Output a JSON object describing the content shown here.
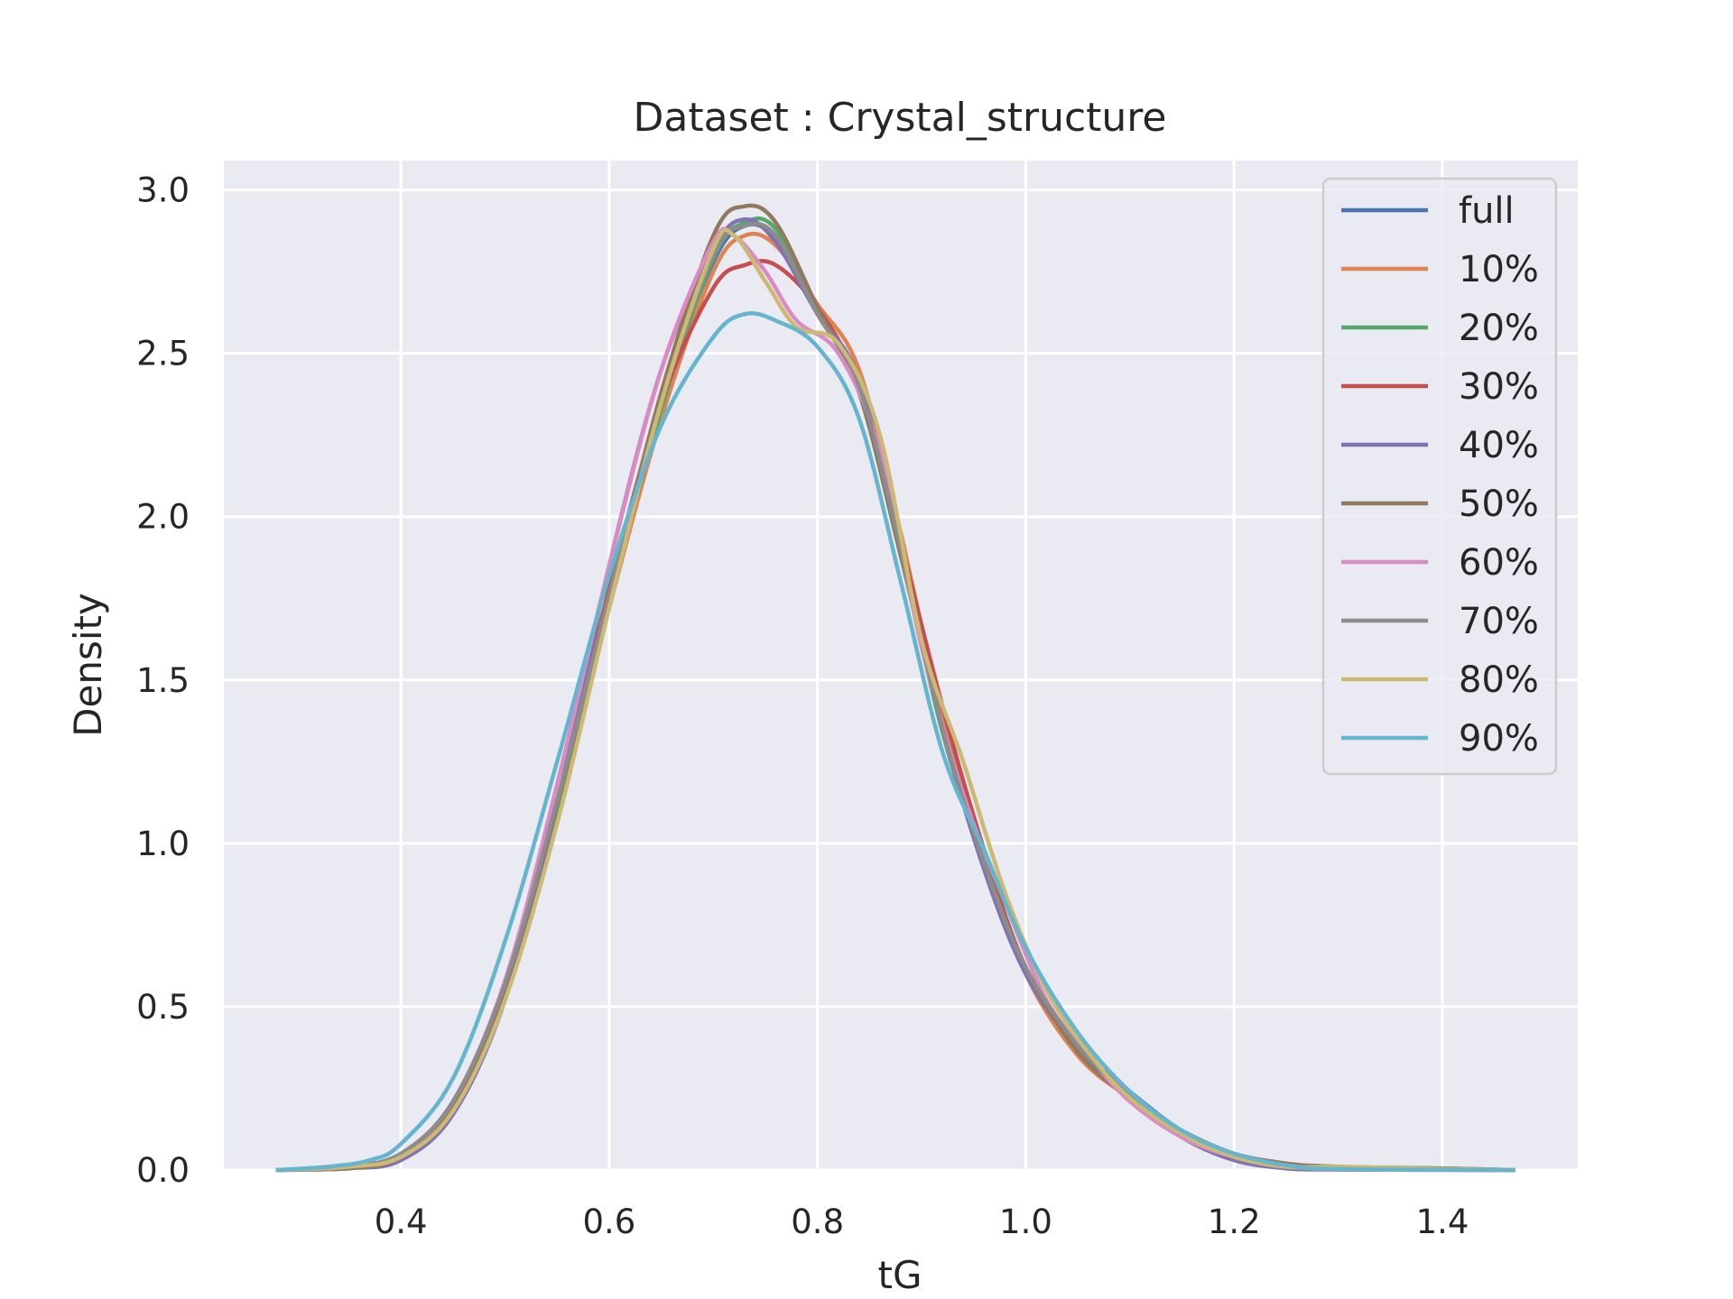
{
  "chart_data": {
    "type": "line",
    "title": "Dataset : Crystal_structure",
    "xlabel": "tG",
    "ylabel": "Density",
    "xlim": [
      0.23,
      1.53
    ],
    "ylim": [
      0.0,
      3.09
    ],
    "xticks": [
      0.4,
      0.6,
      0.8,
      1.0,
      1.2,
      1.4
    ],
    "xtick_labels": [
      "0.4",
      "0.6",
      "0.8",
      "1.0",
      "1.2",
      "1.4"
    ],
    "yticks": [
      0.0,
      0.5,
      1.0,
      1.5,
      2.0,
      2.5,
      3.0
    ],
    "ytick_labels": [
      "0.0",
      "0.5",
      "1.0",
      "1.5",
      "2.0",
      "2.5",
      "3.0"
    ],
    "grid": true,
    "background": "#eaeaf2",
    "legend_position": "top-right",
    "series": [
      {
        "name": "full",
        "color": "#4c72b0",
        "points": [
          [
            0.28,
            0
          ],
          [
            0.35,
            0.01
          ],
          [
            0.4,
            0.05
          ],
          [
            0.45,
            0.2
          ],
          [
            0.5,
            0.55
          ],
          [
            0.55,
            1.1
          ],
          [
            0.6,
            1.75
          ],
          [
            0.65,
            2.35
          ],
          [
            0.7,
            2.78
          ],
          [
            0.73,
            2.89
          ],
          [
            0.76,
            2.85
          ],
          [
            0.8,
            2.62
          ],
          [
            0.84,
            2.4
          ],
          [
            0.88,
            1.9
          ],
          [
            0.92,
            1.35
          ],
          [
            0.96,
            0.95
          ],
          [
            1.0,
            0.62
          ],
          [
            1.05,
            0.38
          ],
          [
            1.1,
            0.24
          ],
          [
            1.15,
            0.12
          ],
          [
            1.2,
            0.05
          ],
          [
            1.25,
            0.02
          ],
          [
            1.3,
            0.005
          ],
          [
            1.4,
            0.002
          ],
          [
            1.47,
            0
          ]
        ]
      },
      {
        "name": "10%",
        "color": "#dd8452",
        "points": [
          [
            0.28,
            0
          ],
          [
            0.35,
            0.01
          ],
          [
            0.4,
            0.04
          ],
          [
            0.45,
            0.19
          ],
          [
            0.5,
            0.54
          ],
          [
            0.55,
            1.08
          ],
          [
            0.6,
            1.72
          ],
          [
            0.65,
            2.3
          ],
          [
            0.7,
            2.75
          ],
          [
            0.73,
            2.86
          ],
          [
            0.76,
            2.83
          ],
          [
            0.8,
            2.65
          ],
          [
            0.84,
            2.45
          ],
          [
            0.88,
            1.95
          ],
          [
            0.92,
            1.38
          ],
          [
            0.96,
            0.96
          ],
          [
            1.0,
            0.6
          ],
          [
            1.05,
            0.35
          ],
          [
            1.1,
            0.22
          ],
          [
            1.15,
            0.12
          ],
          [
            1.2,
            0.05
          ],
          [
            1.25,
            0.02
          ],
          [
            1.3,
            0.01
          ],
          [
            1.4,
            0.005
          ],
          [
            1.47,
            0
          ]
        ]
      },
      {
        "name": "20%",
        "color": "#55a868",
        "points": [
          [
            0.28,
            0
          ],
          [
            0.35,
            0.01
          ],
          [
            0.4,
            0.04
          ],
          [
            0.45,
            0.19
          ],
          [
            0.5,
            0.55
          ],
          [
            0.55,
            1.1
          ],
          [
            0.6,
            1.74
          ],
          [
            0.65,
            2.33
          ],
          [
            0.7,
            2.79
          ],
          [
            0.73,
            2.9
          ],
          [
            0.76,
            2.88
          ],
          [
            0.8,
            2.63
          ],
          [
            0.84,
            2.38
          ],
          [
            0.88,
            1.88
          ],
          [
            0.92,
            1.34
          ],
          [
            0.96,
            0.94
          ],
          [
            1.0,
            0.62
          ],
          [
            1.05,
            0.38
          ],
          [
            1.1,
            0.23
          ],
          [
            1.15,
            0.11
          ],
          [
            1.2,
            0.04
          ],
          [
            1.25,
            0.01
          ],
          [
            1.3,
            0.003
          ],
          [
            1.47,
            0
          ]
        ]
      },
      {
        "name": "30%",
        "color": "#c44e52",
        "points": [
          [
            0.28,
            0
          ],
          [
            0.35,
            0.01
          ],
          [
            0.4,
            0.04
          ],
          [
            0.45,
            0.19
          ],
          [
            0.5,
            0.55
          ],
          [
            0.55,
            1.12
          ],
          [
            0.6,
            1.78
          ],
          [
            0.65,
            2.35
          ],
          [
            0.7,
            2.7
          ],
          [
            0.73,
            2.77
          ],
          [
            0.76,
            2.77
          ],
          [
            0.8,
            2.64
          ],
          [
            0.84,
            2.4
          ],
          [
            0.88,
            1.92
          ],
          [
            0.92,
            1.42
          ],
          [
            0.96,
            0.98
          ],
          [
            1.0,
            0.62
          ],
          [
            1.05,
            0.37
          ],
          [
            1.1,
            0.22
          ],
          [
            1.15,
            0.11
          ],
          [
            1.2,
            0.04
          ],
          [
            1.25,
            0.01
          ],
          [
            1.3,
            0.003
          ],
          [
            1.47,
            0
          ]
        ]
      },
      {
        "name": "40%",
        "color": "#8172b3",
        "points": [
          [
            0.28,
            0
          ],
          [
            0.35,
            0.005
          ],
          [
            0.4,
            0.03
          ],
          [
            0.45,
            0.17
          ],
          [
            0.5,
            0.52
          ],
          [
            0.55,
            1.12
          ],
          [
            0.6,
            1.85
          ],
          [
            0.65,
            2.45
          ],
          [
            0.7,
            2.82
          ],
          [
            0.73,
            2.91
          ],
          [
            0.76,
            2.84
          ],
          [
            0.8,
            2.62
          ],
          [
            0.84,
            2.42
          ],
          [
            0.88,
            1.9
          ],
          [
            0.92,
            1.35
          ],
          [
            0.96,
            0.92
          ],
          [
            1.0,
            0.6
          ],
          [
            1.05,
            0.37
          ],
          [
            1.1,
            0.22
          ],
          [
            1.15,
            0.1
          ],
          [
            1.2,
            0.03
          ],
          [
            1.25,
            0.005
          ],
          [
            1.3,
            0.001
          ],
          [
            1.47,
            0
          ]
        ]
      },
      {
        "name": "50%",
        "color": "#937860",
        "points": [
          [
            0.28,
            0
          ],
          [
            0.35,
            0.005
          ],
          [
            0.4,
            0.04
          ],
          [
            0.45,
            0.19
          ],
          [
            0.5,
            0.56
          ],
          [
            0.55,
            1.12
          ],
          [
            0.6,
            1.76
          ],
          [
            0.65,
            2.38
          ],
          [
            0.7,
            2.86
          ],
          [
            0.73,
            2.95
          ],
          [
            0.76,
            2.9
          ],
          [
            0.8,
            2.64
          ],
          [
            0.84,
            2.38
          ],
          [
            0.88,
            1.88
          ],
          [
            0.92,
            1.36
          ],
          [
            0.96,
            0.95
          ],
          [
            1.0,
            0.62
          ],
          [
            1.05,
            0.36
          ],
          [
            1.1,
            0.22
          ],
          [
            1.15,
            0.12
          ],
          [
            1.2,
            0.05
          ],
          [
            1.25,
            0.02
          ],
          [
            1.3,
            0.01
          ],
          [
            1.4,
            0.005
          ],
          [
            1.47,
            0
          ]
        ]
      },
      {
        "name": "60%",
        "color": "#da8bc3",
        "points": [
          [
            0.28,
            0
          ],
          [
            0.35,
            0.01
          ],
          [
            0.4,
            0.05
          ],
          [
            0.45,
            0.21
          ],
          [
            0.5,
            0.58
          ],
          [
            0.55,
            1.18
          ],
          [
            0.6,
            1.85
          ],
          [
            0.65,
            2.45
          ],
          [
            0.7,
            2.84
          ],
          [
            0.72,
            2.86
          ],
          [
            0.75,
            2.75
          ],
          [
            0.78,
            2.6
          ],
          [
            0.82,
            2.5
          ],
          [
            0.86,
            2.2
          ],
          [
            0.9,
            1.6
          ],
          [
            0.94,
            1.15
          ],
          [
            0.98,
            0.82
          ],
          [
            1.02,
            0.52
          ],
          [
            1.06,
            0.35
          ],
          [
            1.1,
            0.21
          ],
          [
            1.15,
            0.1
          ],
          [
            1.2,
            0.04
          ],
          [
            1.25,
            0.01
          ],
          [
            1.3,
            0.002
          ],
          [
            1.47,
            0
          ]
        ]
      },
      {
        "name": "70%",
        "color": "#8c8c8c",
        "points": [
          [
            0.28,
            0
          ],
          [
            0.35,
            0.01
          ],
          [
            0.4,
            0.05
          ],
          [
            0.45,
            0.21
          ],
          [
            0.5,
            0.57
          ],
          [
            0.55,
            1.13
          ],
          [
            0.6,
            1.76
          ],
          [
            0.65,
            2.35
          ],
          [
            0.7,
            2.8
          ],
          [
            0.73,
            2.89
          ],
          [
            0.76,
            2.86
          ],
          [
            0.8,
            2.62
          ],
          [
            0.84,
            2.4
          ],
          [
            0.88,
            1.9
          ],
          [
            0.92,
            1.35
          ],
          [
            0.96,
            0.94
          ],
          [
            1.0,
            0.62
          ],
          [
            1.05,
            0.38
          ],
          [
            1.1,
            0.23
          ],
          [
            1.15,
            0.12
          ],
          [
            1.2,
            0.05
          ],
          [
            1.25,
            0.01
          ],
          [
            1.3,
            0.003
          ],
          [
            1.47,
            0
          ]
        ]
      },
      {
        "name": "80%",
        "color": "#ccb974",
        "points": [
          [
            0.28,
            0
          ],
          [
            0.35,
            0.01
          ],
          [
            0.4,
            0.04
          ],
          [
            0.45,
            0.18
          ],
          [
            0.5,
            0.52
          ],
          [
            0.55,
            1.06
          ],
          [
            0.6,
            1.72
          ],
          [
            0.65,
            2.35
          ],
          [
            0.7,
            2.82
          ],
          [
            0.72,
            2.86
          ],
          [
            0.75,
            2.72
          ],
          [
            0.78,
            2.58
          ],
          [
            0.82,
            2.53
          ],
          [
            0.86,
            2.25
          ],
          [
            0.9,
            1.62
          ],
          [
            0.94,
            1.25
          ],
          [
            0.98,
            0.85
          ],
          [
            1.02,
            0.55
          ],
          [
            1.06,
            0.36
          ],
          [
            1.1,
            0.22
          ],
          [
            1.15,
            0.11
          ],
          [
            1.2,
            0.04
          ],
          [
            1.25,
            0.01
          ],
          [
            1.3,
            0.01
          ],
          [
            1.4,
            0.003
          ],
          [
            1.47,
            0
          ]
        ]
      },
      {
        "name": "90%",
        "color": "#64b5cd",
        "points": [
          [
            0.28,
            0
          ],
          [
            0.33,
            0.01
          ],
          [
            0.37,
            0.03
          ],
          [
            0.4,
            0.08
          ],
          [
            0.45,
            0.28
          ],
          [
            0.5,
            0.7
          ],
          [
            0.55,
            1.25
          ],
          [
            0.6,
            1.82
          ],
          [
            0.65,
            2.28
          ],
          [
            0.7,
            2.55
          ],
          [
            0.73,
            2.62
          ],
          [
            0.76,
            2.6
          ],
          [
            0.8,
            2.52
          ],
          [
            0.84,
            2.3
          ],
          [
            0.88,
            1.8
          ],
          [
            0.92,
            1.28
          ],
          [
            0.96,
            0.98
          ],
          [
            1.0,
            0.68
          ],
          [
            1.05,
            0.42
          ],
          [
            1.1,
            0.24
          ],
          [
            1.15,
            0.12
          ],
          [
            1.2,
            0.05
          ],
          [
            1.25,
            0.015
          ],
          [
            1.3,
            0.003
          ],
          [
            1.47,
            0
          ]
        ]
      }
    ]
  }
}
